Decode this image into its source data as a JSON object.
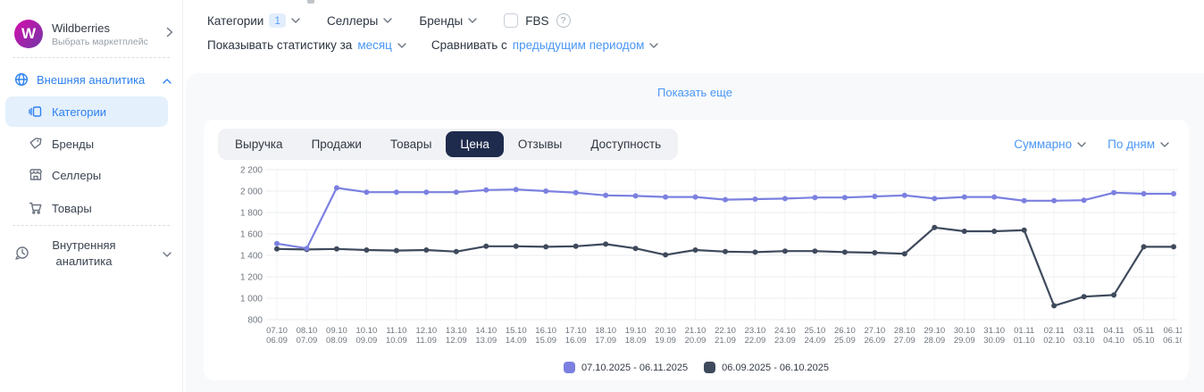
{
  "sidebar": {
    "marketplace": {
      "logo_letter": "W",
      "name": "Wildberries",
      "subtitle": "Выбрать маркетплейс"
    },
    "external_section": {
      "label": "Внешняя аналитика"
    },
    "items": [
      {
        "label": "Категории",
        "active": true
      },
      {
        "label": "Бренды"
      },
      {
        "label": "Селлеры"
      },
      {
        "label": "Товары"
      }
    ],
    "internal_section": {
      "label": "Внутренняя аналитика"
    }
  },
  "filters": {
    "categories_label": "Категории",
    "categories_count": "1",
    "sellers_label": "Селлеры",
    "brands_label": "Бренды",
    "fbs_label": "FBS",
    "stats_prefix": "Показывать статистику за",
    "stats_value": "месяц",
    "compare_prefix": "Сравнивать с",
    "compare_value": "предыдущим периодом"
  },
  "panel": {
    "show_more": "Показать еще"
  },
  "tabs": [
    {
      "label": "Выручка"
    },
    {
      "label": "Продажи"
    },
    {
      "label": "Товары"
    },
    {
      "label": "Цена",
      "active": true
    },
    {
      "label": "Отзывы"
    },
    {
      "label": "Доступность"
    }
  ],
  "view_controls": {
    "summary": "Суммарно",
    "granularity": "По дням"
  },
  "colors": {
    "accent_blue": "#4a97f5",
    "sidebar_blue": "#2e81f0",
    "active_tab_bg": "#1f2b4d",
    "series_current": "#7b80e0",
    "series_previous": "#3e4a5c",
    "grid": "#eaecef"
  },
  "chart_data": {
    "type": "line",
    "title": "",
    "xlabel": "",
    "ylabel": "",
    "ylim": [
      800,
      2200
    ],
    "yticks": [
      2200,
      2000,
      1800,
      1600,
      1400,
      1200,
      1000,
      800
    ],
    "ytick_labels": [
      "2 200",
      "2 000",
      "1 800",
      "1 600",
      "1 400",
      "1 200",
      "1 000",
      "800"
    ],
    "grid": true,
    "legend_position": "bottom",
    "categories_top": [
      "07.10",
      "08.10",
      "09.10",
      "10.10",
      "11.10",
      "12.10",
      "13.10",
      "14.10",
      "15.10",
      "16.10",
      "17.10",
      "18.10",
      "19.10",
      "20.10",
      "21.10",
      "22.10",
      "23.10",
      "24.10",
      "25.10",
      "26.10",
      "27.10",
      "28.10",
      "29.10",
      "30.10",
      "31.10",
      "01.11",
      "02.11",
      "03.11",
      "04.11",
      "05.11",
      "06.11"
    ],
    "categories_bottom": [
      "06.09",
      "07.09",
      "08.09",
      "09.09",
      "10.09",
      "11.09",
      "12.09",
      "13.09",
      "14.09",
      "15.09",
      "16.09",
      "17.09",
      "18.09",
      "19.09",
      "20.09",
      "21.09",
      "22.09",
      "23.09",
      "24.09",
      "25.09",
      "26.09",
      "27.09",
      "28.09",
      "29.09",
      "30.09",
      "01.10",
      "02.10",
      "03.10",
      "04.10",
      "05.10",
      "06.10"
    ],
    "series": [
      {
        "name": "07.10.2025 - 06.11.2025",
        "color": "#7b80e0",
        "values": [
          1510,
          1465,
          2030,
          1990,
          1990,
          1990,
          1990,
          2010,
          2015,
          2000,
          1985,
          1960,
          1955,
          1945,
          1945,
          1920,
          1925,
          1930,
          1940,
          1940,
          1950,
          1960,
          1930,
          1945,
          1945,
          1910,
          1910,
          1915,
          1985,
          1975,
          1975
        ]
      },
      {
        "name": "06.09.2025 - 06.10.2025",
        "color": "#3e4a5c",
        "values": [
          1460,
          1455,
          1460,
          1450,
          1445,
          1450,
          1435,
          1485,
          1485,
          1480,
          1485,
          1505,
          1465,
          1405,
          1450,
          1435,
          1430,
          1440,
          1440,
          1430,
          1425,
          1415,
          1660,
          1625,
          1625,
          1635,
          930,
          1015,
          1030,
          1480,
          1480
        ]
      }
    ]
  }
}
